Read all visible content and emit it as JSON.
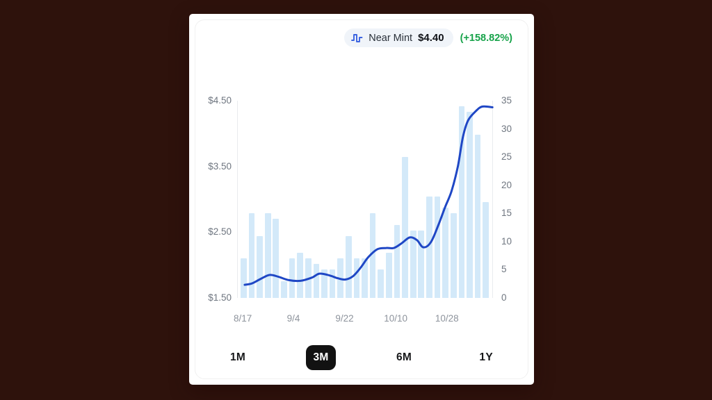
{
  "header": {
    "condition_label": "Near Mint",
    "price": "$4.40",
    "change": "(+158.82%)"
  },
  "range_buttons": [
    {
      "label": "1M",
      "selected": false
    },
    {
      "label": "3M",
      "selected": true
    },
    {
      "label": "6M",
      "selected": false
    },
    {
      "label": "1Y",
      "selected": false
    }
  ],
  "colors": {
    "line": "#1f47c5",
    "bars": "#d3e9f9",
    "positive": "#17a34a",
    "icon_blue": "#3b63e0",
    "selected_button_bg": "#121212",
    "selected_button_text": "#ffffff",
    "axis_text": "#6f7680",
    "tick_text": "#8d939c",
    "pill_bg": "#f0f4f9"
  },
  "chart_data": {
    "type": "bar",
    "title": "Near Mint card price history, 3-month view",
    "legend": "none",
    "grid": "off",
    "left_axis": {
      "label": "price",
      "unit": "$",
      "min": 1.5,
      "max": 4.5,
      "ticks": [
        "$4.50",
        "$3.50",
        "$2.50",
        "$1.50"
      ]
    },
    "right_axis": {
      "label": "sales volume",
      "min": 0,
      "max": 35,
      "ticks": [
        "35",
        "30",
        "25",
        "20",
        "15",
        "10",
        "5",
        "0"
      ]
    },
    "x_ticks": [
      {
        "label": "8/17",
        "pos": 0.022
      },
      {
        "label": "9/4",
        "pos": 0.22
      },
      {
        "label": "9/22",
        "pos": 0.42
      },
      {
        "label": "10/10",
        "pos": 0.62
      },
      {
        "label": "10/28",
        "pos": 0.82
      }
    ],
    "series": [
      {
        "name": "sales-volume",
        "type": "bar",
        "values": [
          7,
          15,
          11,
          15,
          14,
          3,
          7,
          8,
          7,
          6,
          5,
          5,
          7,
          11,
          7,
          7,
          15,
          5,
          8,
          13,
          25,
          12,
          12,
          18,
          18,
          16,
          15,
          34,
          33,
          29,
          17
        ]
      },
      {
        "name": "near-mint-price",
        "type": "line",
        "points": [
          [
            0.027,
            1.7
          ],
          [
            0.055,
            1.72
          ],
          [
            0.09,
            1.79
          ],
          [
            0.125,
            1.85
          ],
          [
            0.16,
            1.82
          ],
          [
            0.2,
            1.77
          ],
          [
            0.245,
            1.76
          ],
          [
            0.29,
            1.81
          ],
          [
            0.32,
            1.87
          ],
          [
            0.36,
            1.84
          ],
          [
            0.39,
            1.8
          ],
          [
            0.42,
            1.78
          ],
          [
            0.45,
            1.83
          ],
          [
            0.48,
            1.96
          ],
          [
            0.51,
            2.12
          ],
          [
            0.545,
            2.24
          ],
          [
            0.58,
            2.26
          ],
          [
            0.61,
            2.26
          ],
          [
            0.64,
            2.33
          ],
          [
            0.672,
            2.42
          ],
          [
            0.7,
            2.38
          ],
          [
            0.725,
            2.27
          ],
          [
            0.755,
            2.35
          ],
          [
            0.785,
            2.62
          ],
          [
            0.81,
            2.88
          ],
          [
            0.835,
            3.12
          ],
          [
            0.86,
            3.5
          ],
          [
            0.88,
            3.95
          ],
          [
            0.9,
            4.2
          ],
          [
            0.93,
            4.34
          ],
          [
            0.955,
            4.41
          ],
          [
            0.995,
            4.4
          ]
        ]
      }
    ]
  }
}
